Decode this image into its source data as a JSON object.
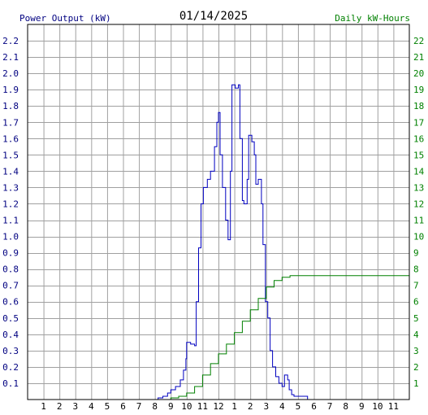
{
  "header": {
    "left_label": "Power Output (kW)",
    "title": "01/14/2025",
    "right_label": "Daily kW-Hours"
  },
  "colors": {
    "power": "#0000c0",
    "energy": "#008000",
    "grid": "#a0a0a0",
    "frame": "#000000",
    "axis_text": "#000000",
    "left_text": "#000080",
    "right_text": "#008000"
  },
  "chart_data": {
    "type": "line",
    "title": "01/14/2025",
    "x_tick_labels": [
      "1",
      "2",
      "3",
      "4",
      "5",
      "6",
      "7",
      "8",
      "9",
      "10",
      "11",
      "12",
      "1",
      "2",
      "3",
      "4",
      "5",
      "6",
      "7",
      "8",
      "9",
      "10",
      "11"
    ],
    "x_range_hours": [
      0,
      24
    ],
    "y_left": {
      "label": "Power Output (kW)",
      "range": [
        0,
        2.3
      ],
      "ticks": [
        "0.1",
        "0.2",
        "0.3",
        "0.4",
        "0.5",
        "0.6",
        "0.7",
        "0.8",
        "0.9",
        "1.0",
        "1.1",
        "1.2",
        "1.3",
        "1.4",
        "1.5",
        "1.6",
        "1.7",
        "1.8",
        "1.9",
        "2.0",
        "2.1",
        "2.2"
      ]
    },
    "y_right": {
      "label": "Daily kW-Hours",
      "range": [
        0,
        23
      ],
      "ticks": [
        "1",
        "2",
        "3",
        "4",
        "5",
        "6",
        "7",
        "8",
        "9",
        "10",
        "11",
        "12",
        "13",
        "14",
        "15",
        "16",
        "17",
        "18",
        "19",
        "20",
        "21",
        "22"
      ]
    },
    "grid": true,
    "series": [
      {
        "name": "Power Output (kW)",
        "axis": "left",
        "points": [
          [
            7.9,
            0
          ],
          [
            8.2,
            0.01
          ],
          [
            8.5,
            0.02
          ],
          [
            8.8,
            0.04
          ],
          [
            9.0,
            0.06
          ],
          [
            9.3,
            0.08
          ],
          [
            9.6,
            0.12
          ],
          [
            9.8,
            0.18
          ],
          [
            9.95,
            0.25
          ],
          [
            10.0,
            0.35
          ],
          [
            10.25,
            0.34
          ],
          [
            10.5,
            0.33
          ],
          [
            10.6,
            0.6
          ],
          [
            10.75,
            0.93
          ],
          [
            10.9,
            1.2
          ],
          [
            11.05,
            1.3
          ],
          [
            11.3,
            1.35
          ],
          [
            11.5,
            1.4
          ],
          [
            11.75,
            1.55
          ],
          [
            11.9,
            1.7
          ],
          [
            12.0,
            1.76
          ],
          [
            12.1,
            1.5
          ],
          [
            12.25,
            1.3
          ],
          [
            12.45,
            1.1
          ],
          [
            12.6,
            0.98
          ],
          [
            12.75,
            1.4
          ],
          [
            12.85,
            1.93
          ],
          [
            13.05,
            1.91
          ],
          [
            13.25,
            1.93
          ],
          [
            13.35,
            1.6
          ],
          [
            13.5,
            1.22
          ],
          [
            13.6,
            1.2
          ],
          [
            13.8,
            1.35
          ],
          [
            13.9,
            1.62
          ],
          [
            14.1,
            1.58
          ],
          [
            14.25,
            1.5
          ],
          [
            14.35,
            1.32
          ],
          [
            14.5,
            1.35
          ],
          [
            14.7,
            1.2
          ],
          [
            14.8,
            0.95
          ],
          [
            14.95,
            0.6
          ],
          [
            15.1,
            0.5
          ],
          [
            15.25,
            0.3
          ],
          [
            15.4,
            0.2
          ],
          [
            15.6,
            0.14
          ],
          [
            15.8,
            0.1
          ],
          [
            16.0,
            0.08
          ],
          [
            16.15,
            0.15
          ],
          [
            16.35,
            0.12
          ],
          [
            16.45,
            0.06
          ],
          [
            16.6,
            0.03
          ],
          [
            16.75,
            0.02
          ],
          [
            17.0,
            0.02
          ],
          [
            17.5,
            0.02
          ],
          [
            17.6,
            0
          ]
        ]
      },
      {
        "name": "Daily kW-Hours",
        "axis": "right",
        "points": [
          [
            8.0,
            0
          ],
          [
            9.0,
            0.1
          ],
          [
            9.5,
            0.2
          ],
          [
            10.0,
            0.4
          ],
          [
            10.5,
            0.8
          ],
          [
            11.0,
            1.5
          ],
          [
            11.5,
            2.2
          ],
          [
            12.0,
            2.8
          ],
          [
            12.5,
            3.4
          ],
          [
            13.0,
            4.1
          ],
          [
            13.5,
            4.8
          ],
          [
            14.0,
            5.5
          ],
          [
            14.5,
            6.2
          ],
          [
            15.0,
            6.9
          ],
          [
            15.5,
            7.3
          ],
          [
            16.0,
            7.5
          ],
          [
            16.5,
            7.6
          ],
          [
            17.0,
            7.6
          ],
          [
            24.0,
            7.6
          ]
        ]
      }
    ]
  }
}
